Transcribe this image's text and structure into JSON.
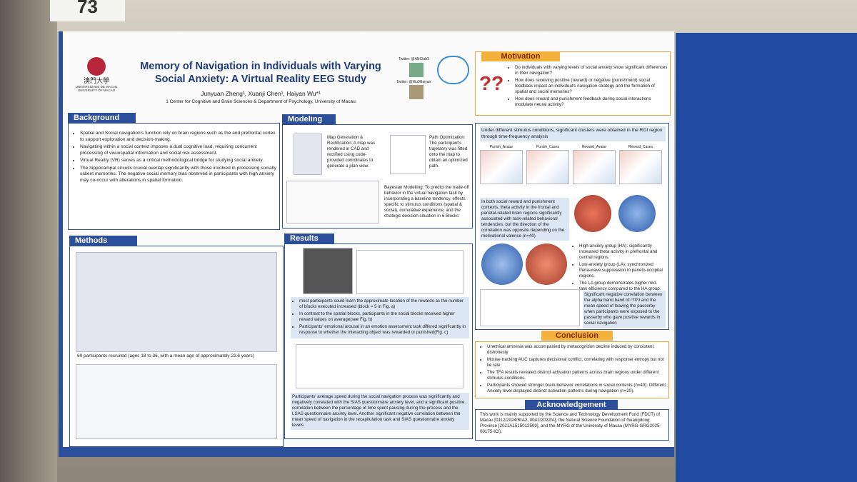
{
  "booth": "73",
  "header": {
    "university_zh": "澳門大學",
    "university": "UNIVERSIDADE DE MACAU UNIVERSITY OF MACAU",
    "title": "Memory of Navigation in Individuals with Varying Social Anxiety: A Virtual Reality EEG Study",
    "authors": "Junyuan Zheng¹, Xuanji Chen¹, Haiyan Wu*¹",
    "affiliation": "1 Center for Cognitive and Brain Sciences & Department of Psychology, University of Macau",
    "twitter": [
      "Twitter: @ANCIab3",
      "Twitter: @Wu3Haiyan"
    ]
  },
  "motivation": {
    "heading": "Motivation",
    "bullets": [
      "Do individuals with varying levels of social anxiety show significant differences in their navigation?",
      "How does receiving positive (reward) or negative (punishment) social feedback impact an individual's navigation strategy and the formation of spatial and social memories?",
      "How does reward and punishment feedback during social interactions modulate neural activity?"
    ]
  },
  "background": {
    "heading": "Background",
    "bullets": [
      "Spatial and Social navigation's function rely on brain regions such as the and prefrontal cortex to support exploration and decision-making.",
      "Navigating within a social context imposes a dual cognitive load, requiring concurrent processing of visuospatial information and social risk assessment.",
      "Virtual Reality (VR) serves as a critical methodological bridge for studying social anxiety.",
      "The hippocampal circuits crucial overlap significantly with those involved in processing socially salient memories. The negative social memory bias observed in participants with high anxiety may co-occur with alterations in spatial formation."
    ]
  },
  "modeling": {
    "heading": "Modeling",
    "map": "Map Generation & Rectification: A map was rendered in CAD and rectified using code-provided coordinates to generate a plan view.",
    "path": "Path Optimization: The participant's trajectory was fitted onto the map to obtain an optimized path.",
    "bayes": "Bayesian Modelling: To predict the trade-off behavior in the virtual navigation task by incorporating a baseline tendency, effects specific to stimulus conditions (spatial & social), cumulative experience, and the strategic decision situation in 6 Blocks"
  },
  "methods": {
    "heading": "Methods",
    "caption": "60 participants recruited (ages 18 to 36, with a mean age of approximately 22.6 years)"
  },
  "results": {
    "heading": "Results",
    "bullets": [
      "most participants could learn the approximate location of the rewards as the number of blocks executed increased (block = 5 in Fig. a)",
      "In contrast to the spatial blocks, participants in the social blocks received higher reward values on average(see Fig. b)",
      "Participants' emotional arousal in an emotion assessment task differed significantly in response to whether the interacting object was rewarded or punished(Fig. c)"
    ],
    "summary": "Participants' average speed during the social navigation process was significantly and negatively correlated with the SIAS questionnaire anxiety level, and a significant positive correlation between the percentage of time spent pausing during the process and the LSAS questionnaire anxiety level. Another significant negative correlation between the mean speed of navigation in the recapitulation task and SIAS questionnaire anxiety levels."
  },
  "eeg": {
    "intro": "Under different stimulus conditions, significant clusters were obtained in the ROI region through time-frequency analysis",
    "panels": [
      "Punish_Avatar",
      "Punish_Cases",
      "Reward_Avatar",
      "Reward_Cases"
    ],
    "theta": "In both social reward and punishment contexts, theta activity in the frontal and parietal-related brain regions significantly associated with task-related behavioral tendencies, but the direction of the correlation was opposite depending on the motivational valence (n=40)",
    "groups": [
      "High-anxiety group (HA): significantly increased theta activity in prefrontal and central regions.",
      "Low-anxiety group (LA): synchronized theta-wave suppression in parieto-occipital regions.",
      "The LA group demonstrates higher mid-task efficiency compared to the HA group."
    ],
    "alpha": "Significant negative correlation between the alpha band band of rTPJ and the mean speed of leaving the passerby when participants were exposed to the passerby who gave positive rewards in social navigation"
  },
  "conclusion": {
    "heading": "Conclusion",
    "bullets": [
      "Unethical amnesia was accompanied by metacognition decline induced by consistent dishonesty",
      "Mouse-tracking AUC captures decisional conflict, correlating with response entropy but not lie rate",
      "The TFA results revealed distinct activation patterns across brain regions under different stimulus conditions.",
      "Participants showed stronger brain-behavior correlations in social contexts (n=40). Different Anxiety level displayed distinct activation patterns during navigation (n=20)."
    ]
  },
  "acknowledgement": {
    "heading": "Acknowledgement",
    "text": "This work is mainly supported by the Science and Technology Development Fund (FDCT) of Macau [0112/2024/RIA2, 0041/2022/A], the Natural Science Foundation of Guangdong Province [2021A1515012509], and the MYRG of the University of Macau (MYRG-GRG2025-00175-ICI)."
  }
}
